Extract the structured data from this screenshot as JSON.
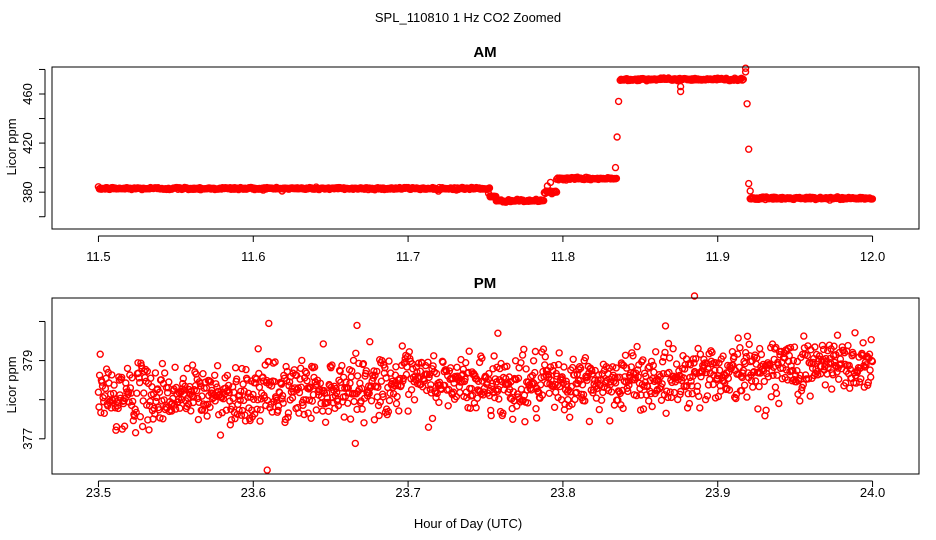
{
  "figure": {
    "title": "SPL_110810  1 Hz CO2 Zoomed",
    "xlabel": "Hour of Day (UTC)"
  },
  "chart_data": [
    {
      "type": "scatter",
      "title": "AM",
      "ylabel": "Licor ppm",
      "xlim": [
        11.47,
        12.03
      ],
      "ylim": [
        350,
        482
      ],
      "xticks": [
        11.5,
        11.6,
        11.7,
        11.8,
        11.9,
        12.0
      ],
      "xtick_labels": [
        "11.5",
        "11.6",
        "11.7",
        "11.8",
        "11.9",
        "12.0"
      ],
      "yticks": [
        380,
        420,
        460
      ],
      "ytick_labels": [
        "380",
        "420",
        "460"
      ],
      "point_color": "#ff0000",
      "grid": false,
      "sample_interval_hours": 0.000278,
      "segments": [
        {
          "x_start": 11.5,
          "x_end": 11.753,
          "y": 383
        },
        {
          "x_start": 11.753,
          "x_end": 11.757,
          "y": 376
        },
        {
          "x_start": 11.757,
          "x_end": 11.788,
          "y": 373
        },
        {
          "x_start": 11.788,
          "x_end": 11.796,
          "y": 380
        },
        {
          "x_start": 11.796,
          "x_end": 11.835,
          "y": 391
        },
        {
          "x_start": 11.837,
          "x_end": 11.917,
          "y": 472
        },
        {
          "x_start": 11.921,
          "x_end": 12.0,
          "y": 375
        }
      ],
      "outliers": [
        {
          "x": 11.752,
          "y": 379
        },
        {
          "x": 11.753,
          "y": 377
        },
        {
          "x": 11.79,
          "y": 385
        },
        {
          "x": 11.792,
          "y": 388
        },
        {
          "x": 11.834,
          "y": 400
        },
        {
          "x": 11.835,
          "y": 425
        },
        {
          "x": 11.836,
          "y": 454
        },
        {
          "x": 11.876,
          "y": 466
        },
        {
          "x": 11.876,
          "y": 462
        },
        {
          "x": 11.918,
          "y": 478
        },
        {
          "x": 11.918,
          "y": 481
        },
        {
          "x": 11.919,
          "y": 452
        },
        {
          "x": 11.92,
          "y": 415
        },
        {
          "x": 11.92,
          "y": 387
        },
        {
          "x": 11.921,
          "y": 381
        }
      ]
    },
    {
      "type": "scatter",
      "title": "PM",
      "ylabel": "Licor ppm",
      "xlim": [
        23.47,
        24.03
      ],
      "ylim": [
        376.1,
        380.6
      ],
      "xticks": [
        23.5,
        23.6,
        23.7,
        23.8,
        23.9,
        24.0
      ],
      "xtick_labels": [
        "23.5",
        "23.6",
        "23.7",
        "23.8",
        "23.9",
        "24.0"
      ],
      "yticks": [
        377,
        379
      ],
      "ytick_labels": [
        "377",
        "379"
      ],
      "point_color": "#ff0000",
      "grid": false,
      "sample_interval_hours": 0.000278,
      "trend": [
        {
          "x": 23.5,
          "y": 378.1
        },
        {
          "x": 23.6,
          "y": 378.15
        },
        {
          "x": 23.7,
          "y": 378.45
        },
        {
          "x": 23.8,
          "y": 378.35
        },
        {
          "x": 23.9,
          "y": 378.7
        },
        {
          "x": 24.0,
          "y": 378.95
        }
      ],
      "spread_sd": 0.38,
      "outliers": [
        {
          "x": 23.609,
          "y": 376.2
        },
        {
          "x": 23.885,
          "y": 380.65
        },
        {
          "x": 23.667,
          "y": 379.9
        },
        {
          "x": 23.758,
          "y": 379.7
        },
        {
          "x": 23.61,
          "y": 379.95
        }
      ]
    }
  ]
}
